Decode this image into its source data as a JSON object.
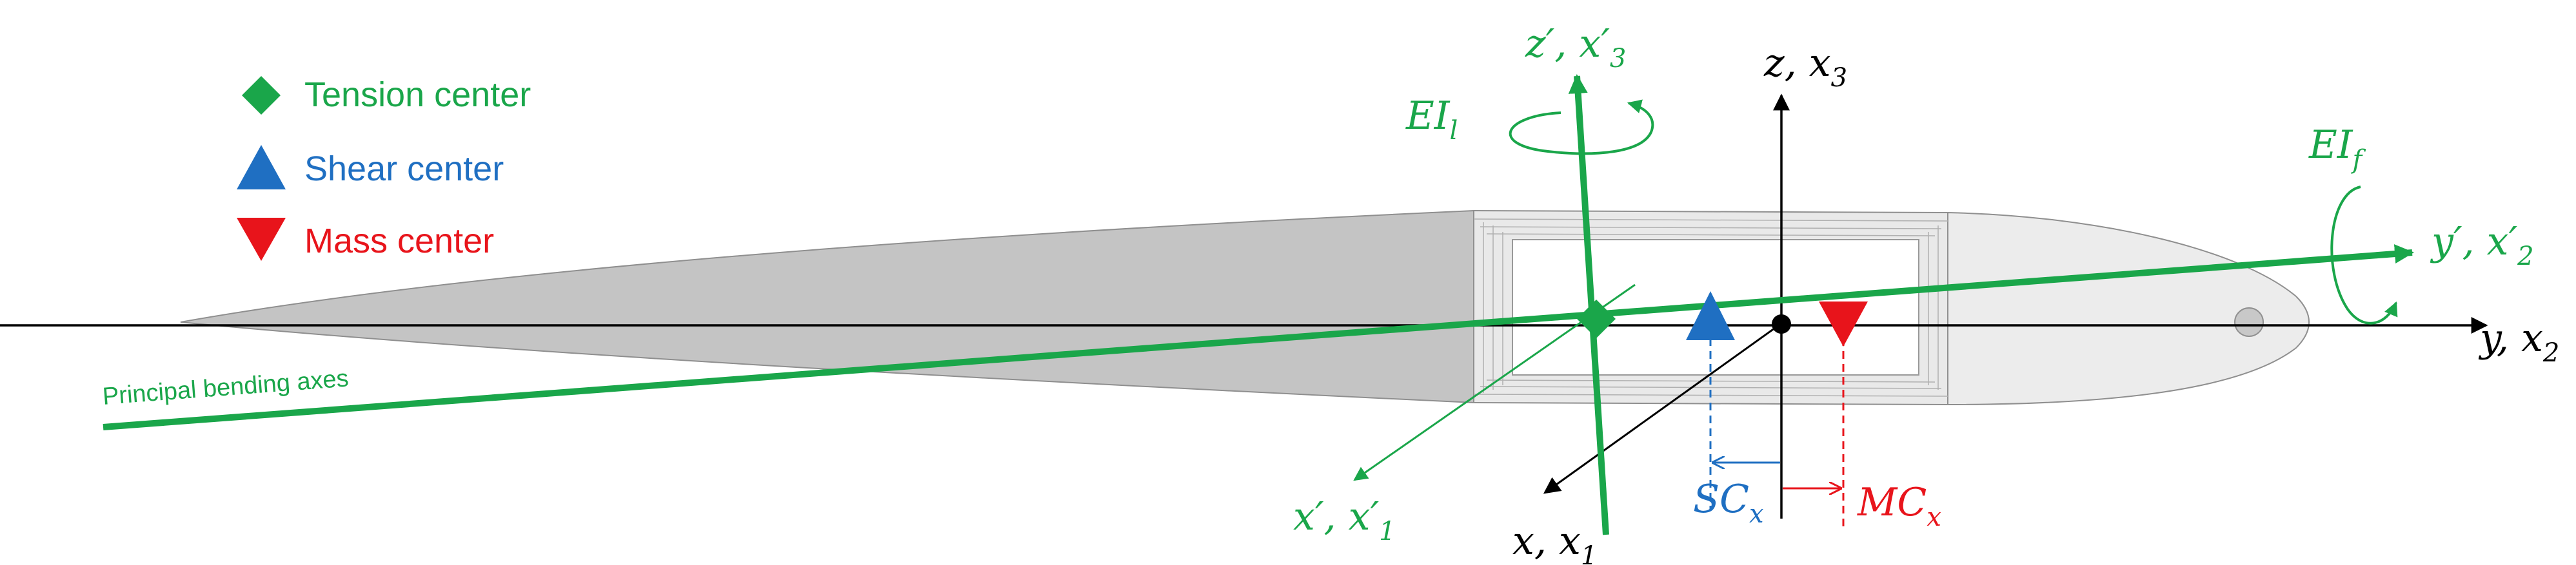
{
  "legend": {
    "tension_center": "Tension center",
    "shear_center": "Shear center",
    "mass_center": "Mass center"
  },
  "labels": {
    "principal_axes": "Principal bending axes",
    "axis_z_prime": "z′, x′",
    "axis_z_prime_sub": "3",
    "axis_z": "z, x",
    "axis_z_sub": "3",
    "axis_y_prime": "y′, x′",
    "axis_y_prime_sub": "2",
    "axis_y": "y, x",
    "axis_y_sub": "2",
    "axis_x_prime": "x′, x′",
    "axis_x_prime_sub": "1",
    "axis_x": "x, x",
    "axis_x_sub": "1",
    "ei_lag": "EI",
    "ei_lag_sub": "l",
    "ei_flap": "EI",
    "ei_flap_sub": "f",
    "sc": "SC",
    "sc_sub": "x",
    "mc": "MC",
    "mc_sub": "x"
  },
  "colors": {
    "green": "#1aa64a",
    "blue": "#1f6fc2",
    "red": "#e8141b",
    "airfoil_fill": "#c4c4c4",
    "airfoil_light": "#e6e6e6",
    "airfoil_stroke": "#8f8f8f",
    "black": "#000000"
  },
  "icons": {
    "tension_center": "green-diamond-icon",
    "shear_center": "blue-triangle-up-icon",
    "mass_center": "red-triangle-down-icon"
  }
}
